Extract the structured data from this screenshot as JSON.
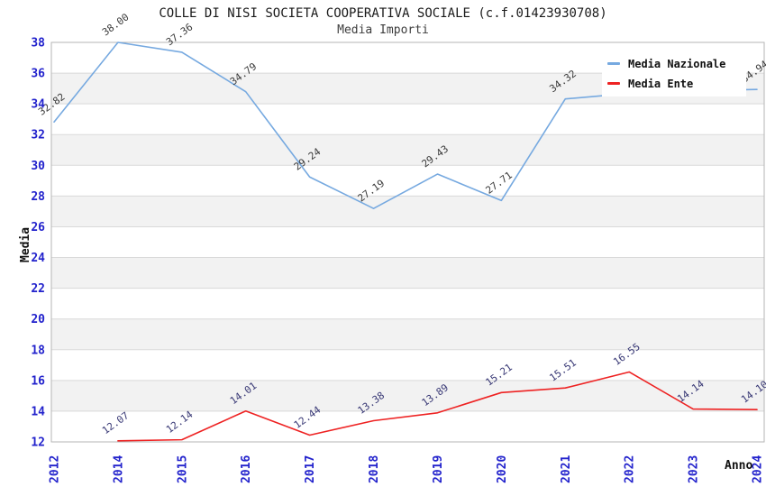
{
  "header": {
    "title": "COLLE DI NISI SOCIETA COOPERATIVA SOCIALE (c.f.01423930708)",
    "subtitle": "Media Importi"
  },
  "axes": {
    "y_title": "Media",
    "x_title": "Anno"
  },
  "legend": {
    "position": "top-right",
    "items": [
      {
        "label": "Media Nazionale",
        "color": "#76a9e0"
      },
      {
        "label": "Media Ente",
        "color": "#ee2222"
      }
    ]
  },
  "chart_data": {
    "type": "line",
    "title": "COLLE DI NISI SOCIETA COOPERATIVA SOCIALE (c.f.01423930708)",
    "subtitle": "Media Importi",
    "xlabel": "Anno",
    "ylabel": "Media",
    "ylim": [
      12,
      38
    ],
    "y_ticks": [
      12,
      14,
      16,
      18,
      20,
      22,
      24,
      26,
      28,
      30,
      32,
      34,
      36,
      38
    ],
    "grid": "horizontal-bands",
    "legend_position": "top-right",
    "categories": [
      "2012",
      "2014",
      "2015",
      "2016",
      "2017",
      "2018",
      "2019",
      "2020",
      "2021",
      "2022",
      "2023",
      "2024"
    ],
    "series": [
      {
        "name": "Media Nazionale",
        "color": "#76a9e0",
        "label_color": "#3a3a3a",
        "values": [
          32.82,
          38.0,
          37.36,
          34.79,
          29.24,
          27.19,
          29.43,
          27.71,
          34.32,
          34.68,
          34.86,
          34.94
        ],
        "labels": [
          "32.82",
          "38.00",
          "37.36",
          "34.79",
          "29.24",
          "27.19",
          "29.43",
          "27.71",
          "34.32",
          null,
          null,
          "34.94"
        ]
      },
      {
        "name": "Media Ente",
        "color": "#ee2222",
        "label_color": "#383875",
        "values": [
          null,
          12.07,
          12.14,
          14.01,
          12.44,
          13.38,
          13.89,
          15.21,
          15.51,
          16.55,
          14.14,
          14.1
        ],
        "labels": [
          null,
          "12.07",
          "12.14",
          "14.01",
          "12.44",
          "13.38",
          "13.89",
          "15.21",
          "15.51",
          "16.55",
          "14.14",
          "14.10"
        ]
      }
    ],
    "style": {
      "band_fill": "#f2f2f2",
      "band_alt_fill": "#ffffff",
      "gridline_color": "#d9d9d9",
      "plot_border_color": "#b6b6b6",
      "tick_label_color": "#2222cc"
    }
  }
}
